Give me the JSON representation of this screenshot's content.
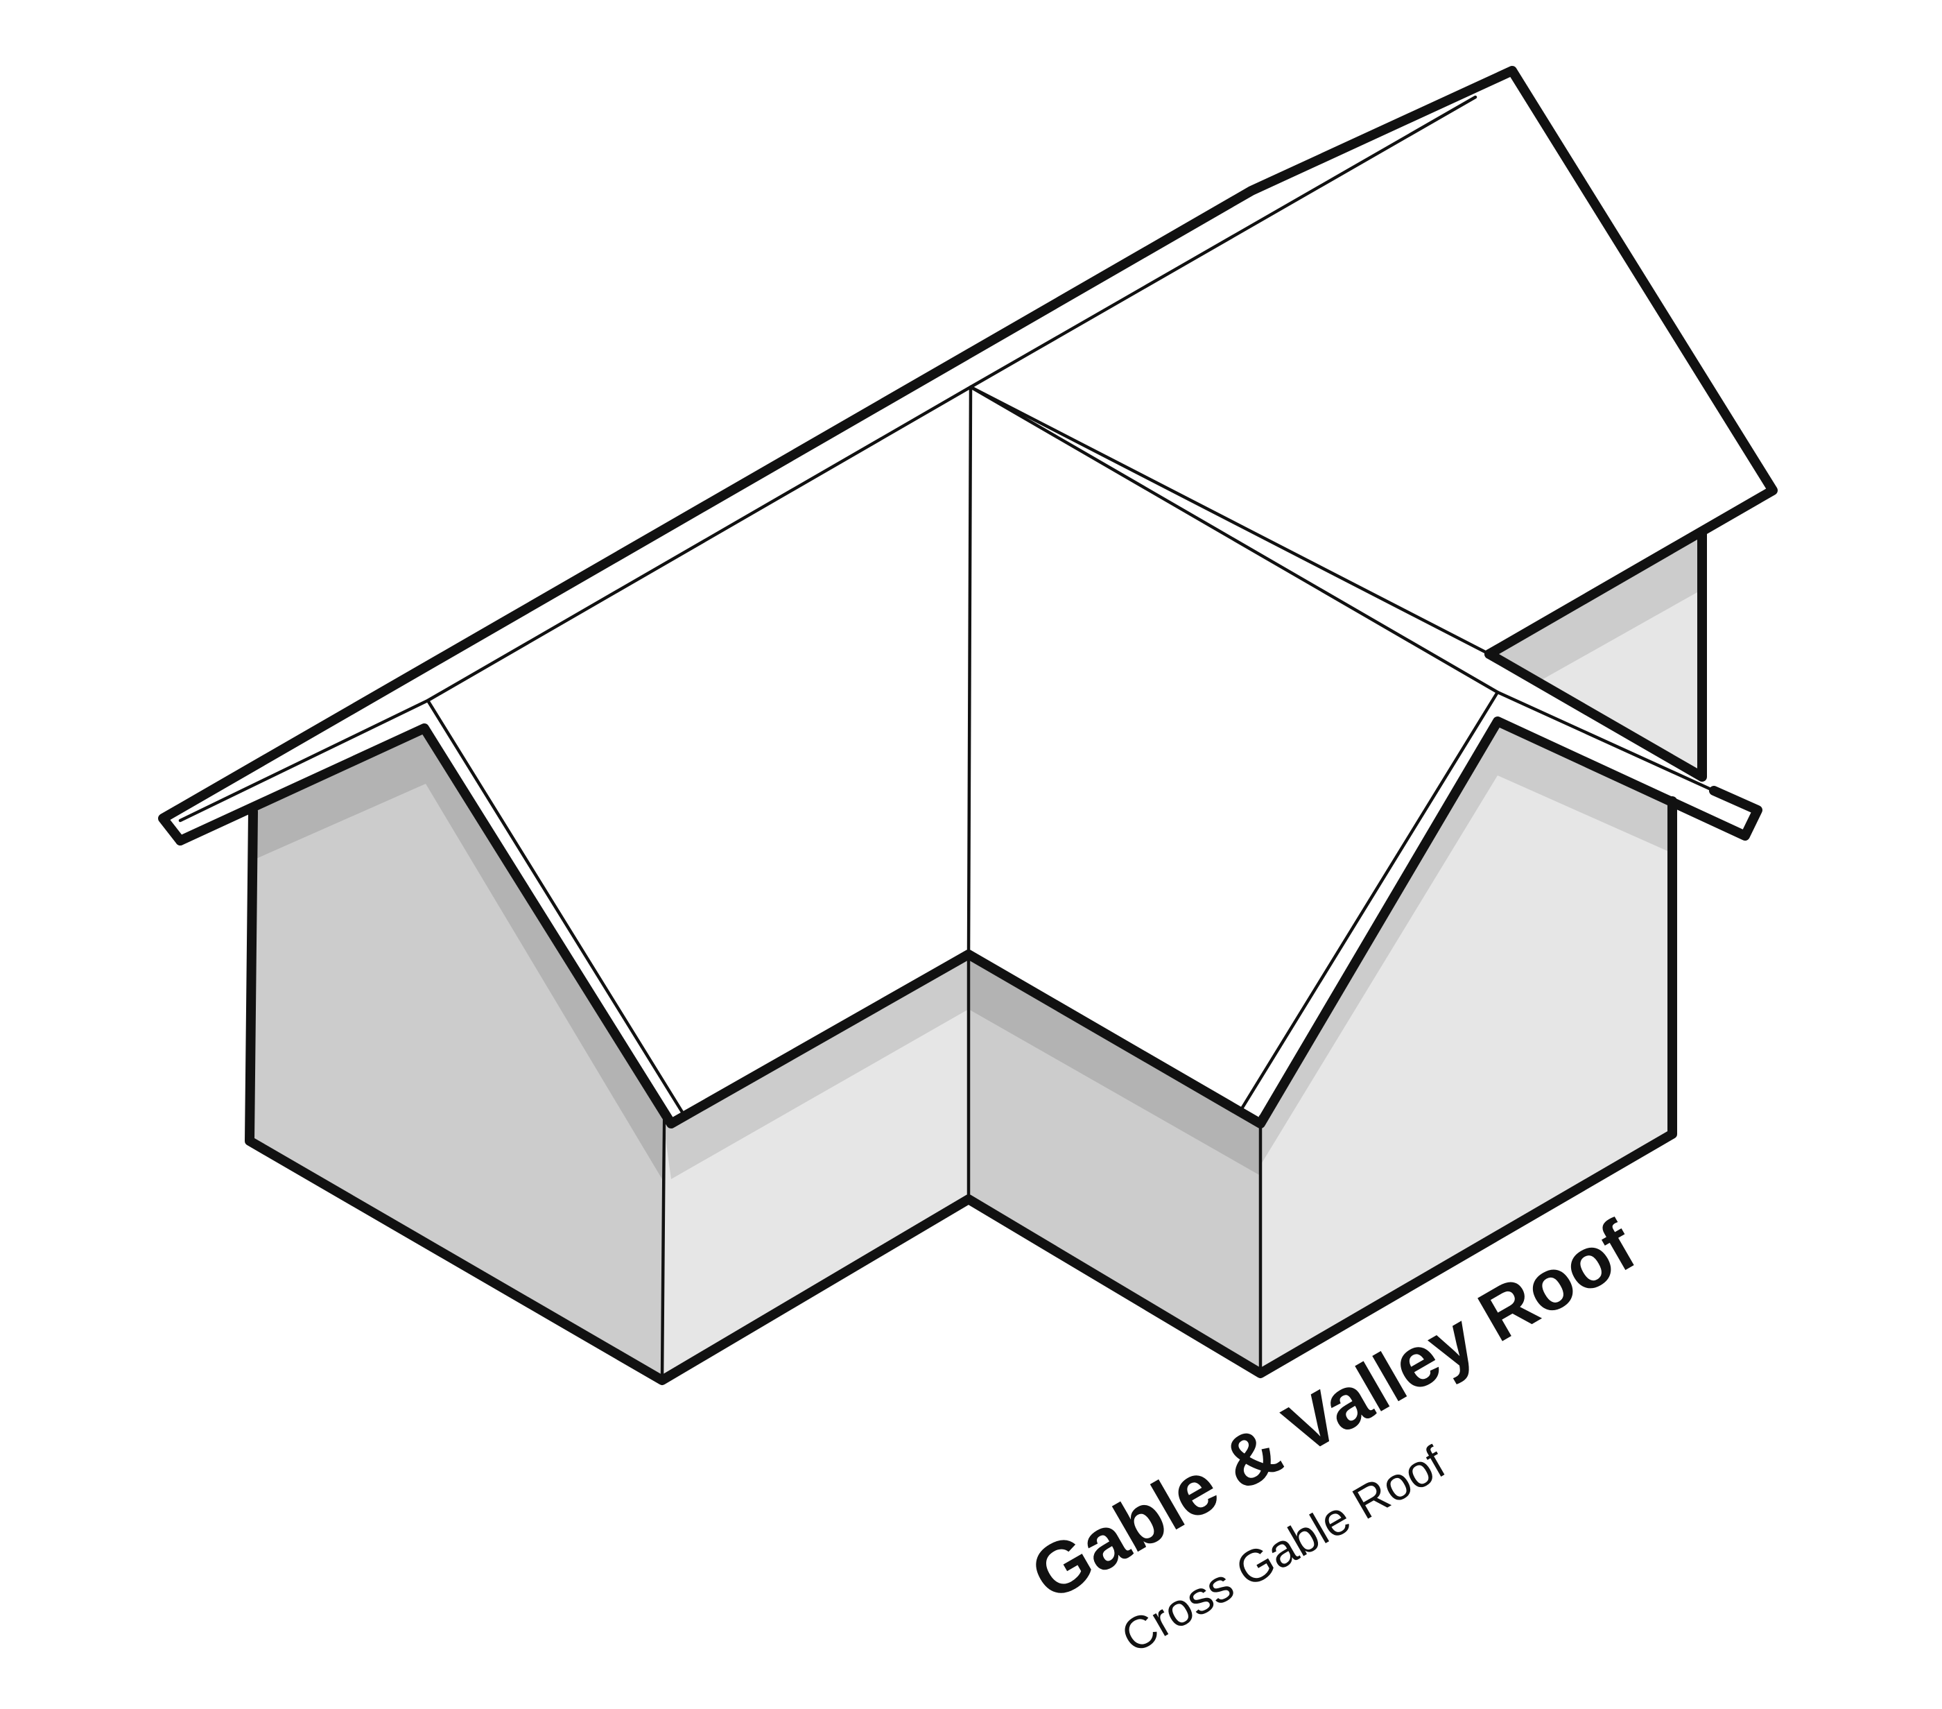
{
  "diagram": {
    "title": "Gable & Valley Roof",
    "subtitle": "Cross Gable Roof",
    "colors": {
      "outline": "#111111",
      "roof": "#ffffff",
      "wall_dark": "#cccccc",
      "wall_light": "#e6e6e6",
      "shadow_on_dark": "#b3b3b3",
      "shadow_on_light": "#cccccc",
      "background": "#ffffff"
    }
  }
}
